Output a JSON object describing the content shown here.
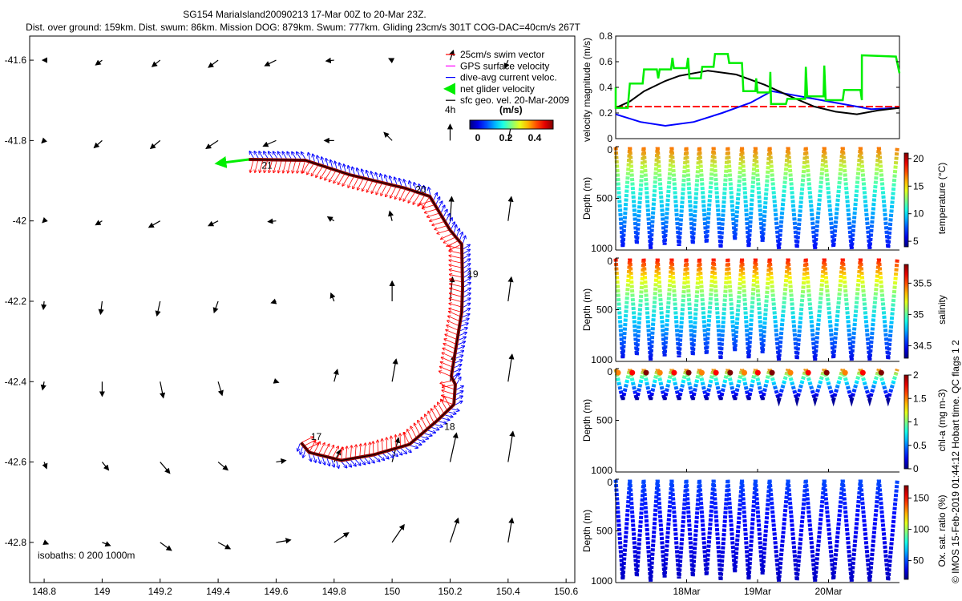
{
  "title": {
    "line1": "SG154 MariaIsland20090213 17-Mar 00Z to 20-Mar 23Z.",
    "line2": "Dist. over ground: 159km. Dist. swum: 86km. Mission DOG: 879km. Swum: 777km. Gliding 23cm/s 301T COG-DAC=40cm/s 267T"
  },
  "copyright": "© IMOS 15-Feb-2019 01:44:12 Hobart time. QC flags 1  2",
  "legend": {
    "items": [
      {
        "label": "25cm/s swim vector",
        "color": "#ff0000"
      },
      {
        "label": "GPS surface velocity",
        "color": "#ff00ff"
      },
      {
        "label": "dive-avg current veloc.",
        "color": "#0000ff"
      },
      {
        "label": "net glider velocity",
        "color": "#00ee00"
      },
      {
        "label": "sfc geo. vel. 20-Mar-2009",
        "color": "#000000"
      }
    ],
    "interval_label": "4h",
    "colorbar_title": "(m/s)",
    "colorbar_ticks": [
      "0",
      "0.2",
      "0.4"
    ]
  },
  "chart_data": [
    {
      "type": "scatter",
      "name": "map",
      "xlim": [
        148.75,
        150.63
      ],
      "ylim": [
        -42.9,
        -41.54
      ],
      "xticks": [
        148.8,
        149,
        149.2,
        149.4,
        149.6,
        149.8,
        150,
        150.2,
        150.4,
        150.6
      ],
      "xtick_labels": [
        "148.8",
        "149",
        "149.2",
        "149.4",
        "149.6",
        "149.8",
        "150",
        "150.2",
        "150.4",
        "150.6"
      ],
      "yticks": [
        -41.6,
        -41.8,
        -42,
        -42.2,
        -42.4,
        -42.6,
        -42.8
      ],
      "ytick_labels": [
        "-41.6",
        "-41.8",
        "-42",
        "-42.2",
        "-42.4",
        "-42.6",
        "-42.8"
      ],
      "isobaths_label": "isobaths: 0   200   1000m",
      "track": [
        [
          149.686,
          -42.552
        ],
        [
          149.714,
          -42.576
        ],
        [
          149.825,
          -42.596
        ],
        [
          149.936,
          -42.582
        ],
        [
          150.06,
          -42.556
        ],
        [
          150.157,
          -42.496
        ],
        [
          150.213,
          -42.457
        ],
        [
          150.218,
          -42.407
        ],
        [
          150.204,
          -42.387
        ],
        [
          150.24,
          -42.227
        ],
        [
          150.243,
          -42.164
        ],
        [
          150.24,
          -42.058
        ],
        [
          150.199,
          -42.022
        ],
        [
          150.13,
          -41.939
        ],
        [
          150.047,
          -41.919
        ],
        [
          149.853,
          -41.885
        ],
        [
          149.7,
          -41.849
        ],
        [
          149.506,
          -41.847
        ]
      ],
      "day_labels": [
        {
          "text": "17",
          "lon": 149.72,
          "lat": -42.545
        },
        {
          "text": "18",
          "lon": 150.18,
          "lat": -42.52
        },
        {
          "text": "19",
          "lon": 150.26,
          "lat": -42.14
        },
        {
          "text": "20",
          "lon": 150.08,
          "lat": -41.93
        },
        {
          "text": "21",
          "lon": 149.55,
          "lat": -41.87
        }
      ],
      "net_velocity": {
        "lon": 149.506,
        "lat": -41.847,
        "u": -0.4,
        "v": -0.05
      },
      "geo_vel_grid": [
        [
          148.8,
          -41.6,
          -0.02,
          0
        ],
        [
          149,
          -41.6,
          -0.08,
          -0.06
        ],
        [
          149.2,
          -41.6,
          -0.1,
          -0.08
        ],
        [
          149.4,
          -41.6,
          -0.12,
          -0.09
        ],
        [
          149.6,
          -41.6,
          -0.14,
          -0.07
        ],
        [
          149.8,
          -41.6,
          -0.1,
          -0.01
        ],
        [
          150,
          -41.6,
          -0.04,
          0.02
        ],
        [
          150.2,
          -41.6,
          0.04,
          0.12
        ],
        [
          150.4,
          -41.6,
          -0.04,
          -0.1
        ],
        [
          148.8,
          -41.8,
          -0.03,
          -0.03
        ],
        [
          149,
          -41.8,
          -0.1,
          -0.09
        ],
        [
          149.2,
          -41.8,
          -0.12,
          -0.1
        ],
        [
          149.4,
          -41.8,
          -0.15,
          -0.1
        ],
        [
          149.6,
          -41.8,
          -0.16,
          -0.07
        ],
        [
          149.8,
          -41.8,
          -0.12,
          0
        ],
        [
          150,
          -41.8,
          -0.1,
          0.1
        ],
        [
          150.2,
          -41.8,
          0,
          0.2
        ],
        [
          150.4,
          -41.8,
          0.05,
          0.25
        ],
        [
          148.8,
          -42,
          -0.02,
          -0.02
        ],
        [
          149,
          -42,
          -0.08,
          -0.05
        ],
        [
          149.2,
          -42,
          -0.14,
          -0.08
        ],
        [
          149.4,
          -42,
          -0.12,
          -0.06
        ],
        [
          149.6,
          -42,
          -0.1,
          -0.01
        ],
        [
          149.8,
          -42,
          -0.08,
          0.05
        ],
        [
          150,
          -42,
          -0.03,
          0.12
        ],
        [
          150.2,
          -42,
          0.02,
          0.3
        ],
        [
          150.4,
          -42,
          0.04,
          0.3
        ],
        [
          148.8,
          -42.2,
          -0.01,
          -0.1
        ],
        [
          149,
          -42.2,
          -0.02,
          -0.16
        ],
        [
          149.2,
          -42.2,
          -0.04,
          -0.18
        ],
        [
          149.4,
          -42.2,
          -0.05,
          -0.14
        ],
        [
          149.6,
          -42.2,
          -0.06,
          -0.02
        ],
        [
          149.8,
          -42.2,
          -0.04,
          0.1
        ],
        [
          150,
          -42.2,
          0,
          0.25
        ],
        [
          150.2,
          -42.2,
          0.03,
          0.3
        ],
        [
          150.4,
          -42.2,
          0.04,
          0.3
        ],
        [
          148.8,
          -42.4,
          -0.02,
          -0.1
        ],
        [
          149,
          -42.4,
          0,
          -0.18
        ],
        [
          149.2,
          -42.4,
          0.04,
          -0.2
        ],
        [
          149.4,
          -42.4,
          0.05,
          -0.17
        ],
        [
          149.6,
          -42.4,
          0.03,
          -0.01
        ],
        [
          149.8,
          -42.4,
          0.04,
          0.15
        ],
        [
          150,
          -42.4,
          0.05,
          0.28
        ],
        [
          150.2,
          -42.4,
          0.05,
          0.33
        ],
        [
          150.4,
          -42.4,
          0.05,
          0.34
        ],
        [
          148.8,
          -42.6,
          0.03,
          -0.08
        ],
        [
          149,
          -42.6,
          0.08,
          -0.1
        ],
        [
          149.2,
          -42.6,
          0.12,
          -0.14
        ],
        [
          149.4,
          -42.6,
          0.12,
          -0.1
        ],
        [
          149.6,
          -42.6,
          0.12,
          0.02
        ],
        [
          149.8,
          -42.6,
          0.08,
          0.15
        ],
        [
          150,
          -42.6,
          0.08,
          0.3
        ],
        [
          150.2,
          -42.6,
          0.08,
          0.36
        ],
        [
          150.4,
          -42.6,
          0.06,
          0.38
        ],
        [
          148.8,
          -42.8,
          0.05,
          -0.02
        ],
        [
          149,
          -42.8,
          0.1,
          -0.04
        ],
        [
          149.2,
          -42.8,
          0.14,
          -0.1
        ],
        [
          149.4,
          -42.8,
          0.15,
          -0.08
        ],
        [
          149.6,
          -42.8,
          0.18,
          0.03
        ],
        [
          149.8,
          -42.8,
          0.18,
          0.12
        ],
        [
          150,
          -42.8,
          0.15,
          0.22
        ],
        [
          150.2,
          -42.8,
          0.1,
          0.3
        ],
        [
          150.4,
          -42.8,
          0.05,
          0.3
        ]
      ]
    },
    {
      "type": "line",
      "name": "velocity-magnitude",
      "ylabel": "velocity magnitude (m/s)",
      "xlim_days_since_17Mar": [
        0,
        4
      ],
      "ylim": [
        0,
        0.8
      ],
      "yticks": [
        "0",
        "0.2",
        "0.4",
        "0.6",
        "0.8"
      ],
      "series": [
        {
          "name": "swim 25cm/s",
          "color": "#ff0000",
          "dashed": true,
          "x": [
            0,
            4
          ],
          "y": [
            0.25,
            0.25
          ]
        },
        {
          "name": "dive-avg current",
          "color": "#0000ff",
          "x": [
            0,
            0.35,
            0.7,
            1.1,
            1.5,
            1.9,
            2.2,
            2.6,
            3.0,
            3.3,
            3.6,
            4.0
          ],
          "y": [
            0.19,
            0.13,
            0.1,
            0.13,
            0.2,
            0.28,
            0.37,
            0.33,
            0.29,
            0.26,
            0.23,
            0.24
          ]
        },
        {
          "name": "sfc geo vel",
          "color": "#000000",
          "x": [
            0,
            0.2,
            0.4,
            0.7,
            0.9,
            1.3,
            1.7,
            2.1,
            2.5,
            2.8,
            3.1,
            3.4,
            3.7,
            4.0
          ],
          "y": [
            0.24,
            0.29,
            0.37,
            0.45,
            0.49,
            0.53,
            0.5,
            0.42,
            0.32,
            0.25,
            0.21,
            0.19,
            0.22,
            0.24
          ]
        },
        {
          "name": "net glider velocity",
          "color": "#00ee00",
          "step": true,
          "x": [
            0,
            0,
            0.17,
            0.2,
            0.38,
            0.4,
            0.58,
            0.6,
            0.62,
            0.78,
            0.8,
            0.82,
            1.0,
            1.02,
            1.04,
            1.2,
            1.22,
            1.38,
            1.4,
            1.58,
            1.6,
            1.78,
            1.8,
            1.97,
            1.98,
            2.0,
            2.17,
            2.18,
            2.19,
            2.4,
            2.42,
            2.67,
            2.68,
            2.7,
            2.93,
            2.94,
            2.96,
            3.2,
            3.22,
            3.45,
            3.47,
            3.47,
            3.95,
            4.0
          ],
          "y": [
            0.4,
            0.24,
            0.24,
            0.43,
            0.43,
            0.54,
            0.54,
            0.47,
            0.54,
            0.54,
            0.63,
            0.55,
            0.55,
            0.63,
            0.47,
            0.47,
            0.56,
            0.56,
            0.66,
            0.66,
            0.59,
            0.59,
            0.37,
            0.37,
            0.47,
            0.36,
            0.36,
            0.52,
            0.27,
            0.27,
            0.31,
            0.31,
            0.56,
            0.33,
            0.33,
            0.57,
            0.3,
            0.3,
            0.38,
            0.38,
            0.3,
            0.65,
            0.64,
            0.51
          ]
        }
      ]
    },
    {
      "type": "scatter",
      "name": "profiles",
      "ylabel": "Depth (m)",
      "ylim": [
        1000,
        0
      ],
      "yticks": [
        "0",
        "500",
        "1000"
      ],
      "xticks_days": [
        1,
        2,
        3
      ],
      "xtick_labels": [
        "18Mar",
        "19Mar",
        "20Mar"
      ],
      "dive_surface_times": [
        0,
        0.2,
        0.395,
        0.59,
        0.79,
        0.995,
        1.18,
        1.38,
        1.58,
        1.78,
        1.97,
        2.17,
        2.43,
        2.68,
        2.94,
        3.2,
        3.45,
        3.71,
        3.97
      ],
      "dive_max_depths": [
        970,
        940,
        990,
        950,
        960,
        940,
        930,
        980,
        900,
        970,
        920,
        990,
        980,
        990,
        970,
        990,
        990,
        980
      ],
      "panels": [
        {
          "key": "temperature",
          "label": "temperature (°C)",
          "clim": [
            4,
            21
          ],
          "ticks": [
            5,
            10,
            15,
            20
          ],
          "tick_labels": [
            "5",
            "10",
            "15",
            "20"
          ],
          "surface": 17,
          "bottom": 6
        },
        {
          "key": "salinity",
          "label": "salinity",
          "clim": [
            34.3,
            35.8
          ],
          "ticks": [
            34.5,
            35,
            35.5
          ],
          "tick_labels": [
            "34.5",
            "35",
            "35.5"
          ],
          "surface": 35.6,
          "bottom": 34.45
        },
        {
          "key": "chl",
          "label": "chl-a (mg m-3)",
          "clim": [
            0,
            2
          ],
          "ticks": [
            0,
            0.5,
            1,
            1.5,
            2
          ],
          "tick_labels": [
            "0",
            "0.5",
            "1",
            "1.5",
            "2"
          ],
          "surface": 1.5,
          "bottom": 0.05,
          "max_depth": 300
        },
        {
          "key": "oxygen",
          "label": "Ox. sat. ratio (%)",
          "clim": [
            20,
            170
          ],
          "ticks": [
            50,
            100,
            150
          ],
          "tick_labels": [
            "50",
            "100",
            "150"
          ],
          "surface": 50,
          "bottom": 30
        }
      ]
    }
  ]
}
